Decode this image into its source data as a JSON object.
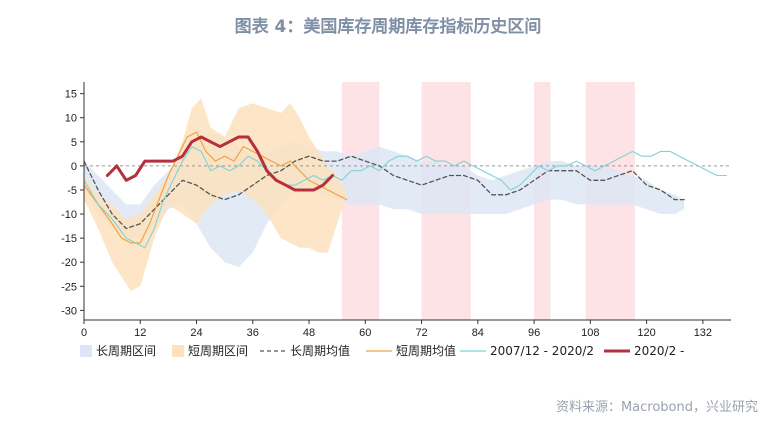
{
  "title": "图表 4：美国库存周期库存指标历史区间",
  "source": "资料来源：Macrobond，兴业研究",
  "chart_data": {
    "type": "line",
    "xlim": [
      0,
      138
    ],
    "ylim": [
      -32,
      17
    ],
    "x_ticks": [
      0,
      12,
      24,
      36,
      48,
      60,
      72,
      84,
      96,
      108,
      120,
      132
    ],
    "y_ticks": [
      15,
      10,
      5,
      0,
      -5,
      -10,
      -15,
      -20,
      -25,
      -30
    ],
    "shaded_ranges": [
      [
        55,
        63
      ],
      [
        72,
        82.5
      ],
      [
        96,
        99.5
      ],
      [
        107,
        117.5
      ]
    ],
    "legend": [
      {
        "label": "长周期区间",
        "kind": "band",
        "color": "#dde6f4"
      },
      {
        "label": "短周期区间",
        "kind": "band",
        "color": "#fde2bd"
      },
      {
        "label": "长周期均值",
        "kind": "dash",
        "color": "#555555"
      },
      {
        "label": "短周期均值",
        "kind": "line",
        "color": "#f0a24a"
      },
      {
        "label": "2007/12 - 2020/2",
        "kind": "line",
        "color": "#7fd3d6"
      },
      {
        "label": "2020/2 -",
        "kind": "thick",
        "color": "#b5303f"
      }
    ],
    "long_band": {
      "color": "#dde6f4",
      "upper": [
        [
          0,
          1
        ],
        [
          3,
          -2
        ],
        [
          6,
          -5
        ],
        [
          9,
          -8
        ],
        [
          12,
          -8
        ],
        [
          15,
          -4
        ],
        [
          18,
          -1
        ],
        [
          21,
          2
        ],
        [
          24,
          5
        ],
        [
          27,
          7
        ],
        [
          30,
          6
        ],
        [
          33,
          4
        ],
        [
          36,
          2
        ],
        [
          39,
          3
        ],
        [
          42,
          4
        ],
        [
          45,
          5
        ],
        [
          48,
          4
        ],
        [
          51,
          3
        ],
        [
          54,
          3
        ],
        [
          57,
          2
        ],
        [
          60,
          3
        ],
        [
          63,
          4
        ],
        [
          66,
          3
        ],
        [
          69,
          2
        ],
        [
          72,
          1
        ],
        [
          75,
          1
        ],
        [
          78,
          0
        ],
        [
          81,
          0
        ],
        [
          84,
          -2
        ],
        [
          87,
          -3
        ],
        [
          90,
          -2
        ],
        [
          93,
          -1
        ],
        [
          96,
          0
        ],
        [
          99,
          1
        ],
        [
          102,
          1
        ],
        [
          105,
          0
        ],
        [
          108,
          0
        ],
        [
          111,
          0
        ],
        [
          114,
          -1
        ],
        [
          117,
          -2
        ],
        [
          120,
          -3
        ],
        [
          123,
          -5
        ],
        [
          126,
          -6
        ],
        [
          128,
          -7
        ]
      ],
      "lower": [
        [
          0,
          -5
        ],
        [
          3,
          -10
        ],
        [
          6,
          -13
        ],
        [
          9,
          -15
        ],
        [
          12,
          -15
        ],
        [
          15,
          -13
        ],
        [
          18,
          -9
        ],
        [
          21,
          -8
        ],
        [
          24,
          -12
        ],
        [
          27,
          -17
        ],
        [
          30,
          -20
        ],
        [
          33,
          -21
        ],
        [
          36,
          -18
        ],
        [
          39,
          -12
        ],
        [
          42,
          -8
        ],
        [
          45,
          -5
        ],
        [
          48,
          -5
        ],
        [
          51,
          -6
        ],
        [
          54,
          -7
        ],
        [
          57,
          -8
        ],
        [
          60,
          -8
        ],
        [
          63,
          -8
        ],
        [
          66,
          -9
        ],
        [
          69,
          -9
        ],
        [
          72,
          -10
        ],
        [
          75,
          -10
        ],
        [
          78,
          -10
        ],
        [
          81,
          -10
        ],
        [
          84,
          -10
        ],
        [
          87,
          -10
        ],
        [
          90,
          -10
        ],
        [
          93,
          -9
        ],
        [
          96,
          -8
        ],
        [
          99,
          -7
        ],
        [
          102,
          -7
        ],
        [
          105,
          -8
        ],
        [
          108,
          -8
        ],
        [
          111,
          -8
        ],
        [
          114,
          -8
        ],
        [
          117,
          -8
        ],
        [
          120,
          -9
        ],
        [
          123,
          -10
        ],
        [
          126,
          -10
        ],
        [
          128,
          -9
        ]
      ]
    },
    "short_band": {
      "color": "#fde2bd",
      "upper": [
        [
          0,
          -2
        ],
        [
          3,
          -6
        ],
        [
          6,
          -8
        ],
        [
          9,
          -11
        ],
        [
          12,
          -10
        ],
        [
          15,
          -6
        ],
        [
          18,
          -2
        ],
        [
          21,
          5
        ],
        [
          23,
          12
        ],
        [
          25,
          14
        ],
        [
          27,
          8
        ],
        [
          30,
          6
        ],
        [
          33,
          12
        ],
        [
          36,
          13
        ],
        [
          39,
          12
        ],
        [
          42,
          11
        ],
        [
          44,
          13
        ],
        [
          46,
          10
        ],
        [
          48,
          6
        ],
        [
          50,
          3
        ],
        [
          52,
          0
        ],
        [
          54,
          -2
        ],
        [
          56,
          -6
        ]
      ],
      "lower": [
        [
          56,
          -6
        ],
        [
          54,
          -12
        ],
        [
          52,
          -18
        ],
        [
          50,
          -18
        ],
        [
          48,
          -17
        ],
        [
          46,
          -17
        ],
        [
          44,
          -16
        ],
        [
          42,
          -15
        ],
        [
          39,
          -10
        ],
        [
          36,
          -7
        ],
        [
          33,
          -5
        ],
        [
          30,
          -6
        ],
        [
          27,
          -8
        ],
        [
          24,
          -12
        ],
        [
          21,
          -10
        ],
        [
          18,
          -8
        ],
        [
          15,
          -15
        ],
        [
          12,
          -25
        ],
        [
          10,
          -26
        ],
        [
          8,
          -23
        ],
        [
          6,
          -20
        ],
        [
          3,
          -13
        ],
        [
          0,
          -7
        ]
      ]
    },
    "series": [
      {
        "name": "长周期均值",
        "color": "#555555",
        "width": 1.3,
        "dash": "4,3",
        "points": [
          [
            0,
            1
          ],
          [
            3,
            -5
          ],
          [
            6,
            -10
          ],
          [
            9,
            -13
          ],
          [
            12,
            -12
          ],
          [
            15,
            -9
          ],
          [
            18,
            -6
          ],
          [
            21,
            -3
          ],
          [
            24,
            -4
          ],
          [
            27,
            -6
          ],
          [
            30,
            -7
          ],
          [
            33,
            -6
          ],
          [
            36,
            -4
          ],
          [
            39,
            -2
          ],
          [
            42,
            -1
          ],
          [
            45,
            1
          ],
          [
            48,
            2
          ],
          [
            51,
            1
          ],
          [
            54,
            1
          ],
          [
            57,
            2
          ],
          [
            60,
            1
          ],
          [
            63,
            0
          ],
          [
            66,
            -2
          ],
          [
            69,
            -3
          ],
          [
            72,
            -4
          ],
          [
            75,
            -3
          ],
          [
            78,
            -2
          ],
          [
            81,
            -2
          ],
          [
            84,
            -3
          ],
          [
            87,
            -6
          ],
          [
            90,
            -6
          ],
          [
            93,
            -5
          ],
          [
            96,
            -3
          ],
          [
            99,
            -1
          ],
          [
            102,
            -1
          ],
          [
            105,
            -1
          ],
          [
            108,
            -3
          ],
          [
            111,
            -3
          ],
          [
            114,
            -2
          ],
          [
            117,
            -1
          ],
          [
            120,
            -4
          ],
          [
            123,
            -5
          ],
          [
            126,
            -7
          ],
          [
            128,
            -7
          ]
        ]
      },
      {
        "name": "短周期均值",
        "color": "#f0a24a",
        "width": 1.2,
        "points": [
          [
            0,
            -4
          ],
          [
            3,
            -8
          ],
          [
            6,
            -12
          ],
          [
            8,
            -15
          ],
          [
            10,
            -16
          ],
          [
            12,
            -16
          ],
          [
            14,
            -12
          ],
          [
            16,
            -7
          ],
          [
            18,
            -2
          ],
          [
            20,
            2
          ],
          [
            22,
            6
          ],
          [
            24,
            7
          ],
          [
            26,
            3
          ],
          [
            28,
            1
          ],
          [
            30,
            2
          ],
          [
            32,
            1
          ],
          [
            34,
            4
          ],
          [
            36,
            3
          ],
          [
            38,
            2
          ],
          [
            40,
            1
          ],
          [
            42,
            0
          ],
          [
            44,
            1
          ],
          [
            46,
            -1
          ],
          [
            48,
            -3
          ],
          [
            50,
            -4
          ],
          [
            52,
            -5
          ],
          [
            54,
            -6
          ],
          [
            56,
            -7
          ]
        ]
      },
      {
        "name": "2007/12 - 2020/2",
        "color": "#7fd3d6",
        "width": 1.1,
        "points": [
          [
            0,
            -3
          ],
          [
            3,
            -8
          ],
          [
            6,
            -11
          ],
          [
            9,
            -15
          ],
          [
            11,
            -16
          ],
          [
            13,
            -17
          ],
          [
            15,
            -13
          ],
          [
            17,
            -7
          ],
          [
            19,
            -3
          ],
          [
            21,
            1
          ],
          [
            23,
            4
          ],
          [
            25,
            3
          ],
          [
            27,
            -1
          ],
          [
            29,
            0
          ],
          [
            31,
            -1
          ],
          [
            33,
            0
          ],
          [
            35,
            2
          ],
          [
            37,
            1
          ],
          [
            39,
            -1
          ],
          [
            41,
            -3
          ],
          [
            43,
            -4
          ],
          [
            45,
            -4
          ],
          [
            47,
            -3
          ],
          [
            49,
            -2
          ],
          [
            51,
            -3
          ],
          [
            53,
            -2
          ],
          [
            55,
            -3
          ],
          [
            57,
            -1
          ],
          [
            59,
            -1
          ],
          [
            61,
            0
          ],
          [
            63,
            -1
          ],
          [
            65,
            1
          ],
          [
            67,
            2
          ],
          [
            69,
            2
          ],
          [
            71,
            1
          ],
          [
            73,
            2
          ],
          [
            75,
            1
          ],
          [
            77,
            1
          ],
          [
            79,
            0
          ],
          [
            81,
            1
          ],
          [
            83,
            0
          ],
          [
            85,
            -1
          ],
          [
            87,
            -2
          ],
          [
            89,
            -3
          ],
          [
            91,
            -5
          ],
          [
            93,
            -4
          ],
          [
            95,
            -2
          ],
          [
            97,
            0
          ],
          [
            99,
            -1
          ],
          [
            101,
            0
          ],
          [
            103,
            0
          ],
          [
            105,
            1
          ],
          [
            107,
            0
          ],
          [
            109,
            -1
          ],
          [
            111,
            0
          ],
          [
            113,
            1
          ],
          [
            115,
            2
          ],
          [
            117,
            3
          ],
          [
            119,
            2
          ],
          [
            121,
            2
          ],
          [
            123,
            3
          ],
          [
            125,
            3
          ],
          [
            127,
            2
          ],
          [
            129,
            1
          ],
          [
            131,
            0
          ],
          [
            133,
            -1
          ],
          [
            135,
            -2
          ],
          [
            137,
            -2
          ]
        ]
      },
      {
        "name": "2020/2 -",
        "color": "#b5303f",
        "width": 3,
        "points": [
          [
            5,
            -2
          ],
          [
            7,
            0
          ],
          [
            9,
            -3
          ],
          [
            11,
            -2
          ],
          [
            13,
            1
          ],
          [
            15,
            1
          ],
          [
            17,
            1
          ],
          [
            19,
            1
          ],
          [
            21,
            2
          ],
          [
            23,
            5
          ],
          [
            25,
            6
          ],
          [
            27,
            5
          ],
          [
            29,
            4
          ],
          [
            31,
            5
          ],
          [
            33,
            6
          ],
          [
            35,
            6
          ],
          [
            37,
            3
          ],
          [
            39,
            -1
          ],
          [
            41,
            -3
          ],
          [
            43,
            -4
          ],
          [
            45,
            -5
          ],
          [
            47,
            -5
          ],
          [
            49,
            -5
          ],
          [
            51,
            -4
          ],
          [
            53,
            -2
          ]
        ]
      }
    ]
  }
}
